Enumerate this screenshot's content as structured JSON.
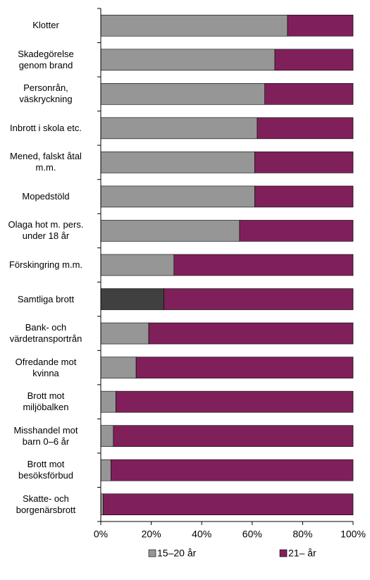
{
  "chart_data": {
    "type": "stacked_barh",
    "categories": [
      "Klotter",
      "Skadegörelse\ngenom brand",
      "Personrån,\nväskryckning",
      "Inbrott i skola etc.",
      "Mened, falskt åtal\nm.m.",
      "Mopedstöld",
      "Olaga hot m. pers.\nunder 18 år",
      "Förskingring m.m.",
      "Samtliga brott",
      "Bank- och\nvärdetransportrån",
      "Ofredande mot\nkvinna",
      "Brott mot\nmiljöbalken",
      "Misshandel mot\nbarn 0–6 år",
      "Brott mot\nbesöksförbud",
      "Skatte- och\nborgenärsbrott"
    ],
    "series": [
      {
        "name": "15–20 år",
        "color": "#969696",
        "colors": [
          "#969696",
          "#969696",
          "#969696",
          "#969696",
          "#969696",
          "#969696",
          "#969696",
          "#969696",
          "#404040",
          "#969696",
          "#969696",
          "#969696",
          "#969696",
          "#969696",
          "#969696"
        ],
        "values": [
          74,
          69,
          65,
          62,
          61,
          61,
          55,
          29,
          25,
          19,
          14,
          6,
          5,
          4,
          1
        ]
      },
      {
        "name": "21– år",
        "color": "#80205a",
        "values": [
          26,
          31,
          35,
          38,
          39,
          39,
          45,
          71,
          75,
          81,
          86,
          94,
          95,
          96,
          99
        ]
      }
    ],
    "xlim": [
      0,
      100
    ],
    "xticks": [
      {
        "value": 0,
        "label": "0%"
      },
      {
        "value": 20,
        "label": "20%"
      },
      {
        "value": 40,
        "label": "40%"
      },
      {
        "value": 60,
        "label": "60%"
      },
      {
        "value": 80,
        "label": "80%"
      },
      {
        "value": 100,
        "label": "100%"
      }
    ]
  }
}
